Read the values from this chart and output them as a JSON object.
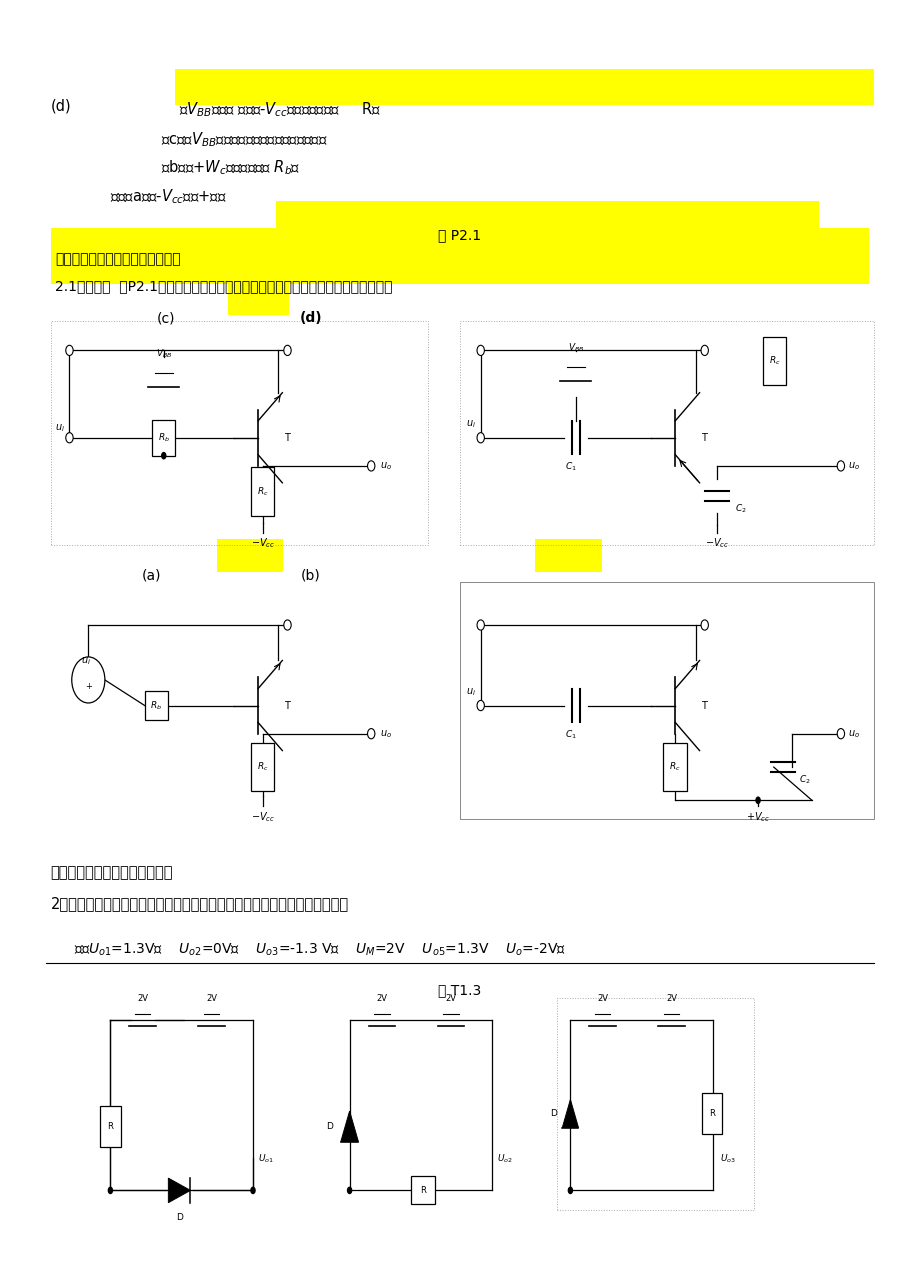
{
  "bg_color": "#ffffff",
  "page_width": 9.2,
  "page_height": 12.8,
  "highlight_yellow": "#FFFF00",
  "text_color": "#000000",
  "caption_t13": "图 T1.3",
  "answer_line": "解：$U_{o1}$=1.3V，    $U_{o2}$=0V，    $U_{o3}$=-1.3 V，    $U_M$=2V    $U_{o5}$=1.3V    $U_o$=-2V。",
  "q2_line1": "2、改正如图所示电路中的错误，使它们有可能放大正弦波信号。要求保留电",
  "q2_line2": "路原来的共射接法和耦合方式。",
  "hl1_line1": "2.1分别改正  图P2.1所示各电路中的错误，使它们有可能放大正弦波信号。要求保留",
  "hl1_line2": "电路原来的共射接法和耦合方式。",
  "hl2_text": "图 P2.1",
  "ans_a": "解：（a）将-$V_{cc}$改为+七。",
  "ans_b": "（b）在+$W_c$与基极之间加 $R_b$。",
  "ans_c": "（c）将$V_{BB}$反接，且在输入端串联一个电阻。",
  "ans_d_prefix": "(d)",
  "ans_d_text": "在$V_{BB}$支路加 民，在-$V_{cc}$与集电极之间加     R。",
  "label_a": "(a)",
  "label_b": "(b)",
  "label_c": "(c)",
  "label_d": "(d)"
}
